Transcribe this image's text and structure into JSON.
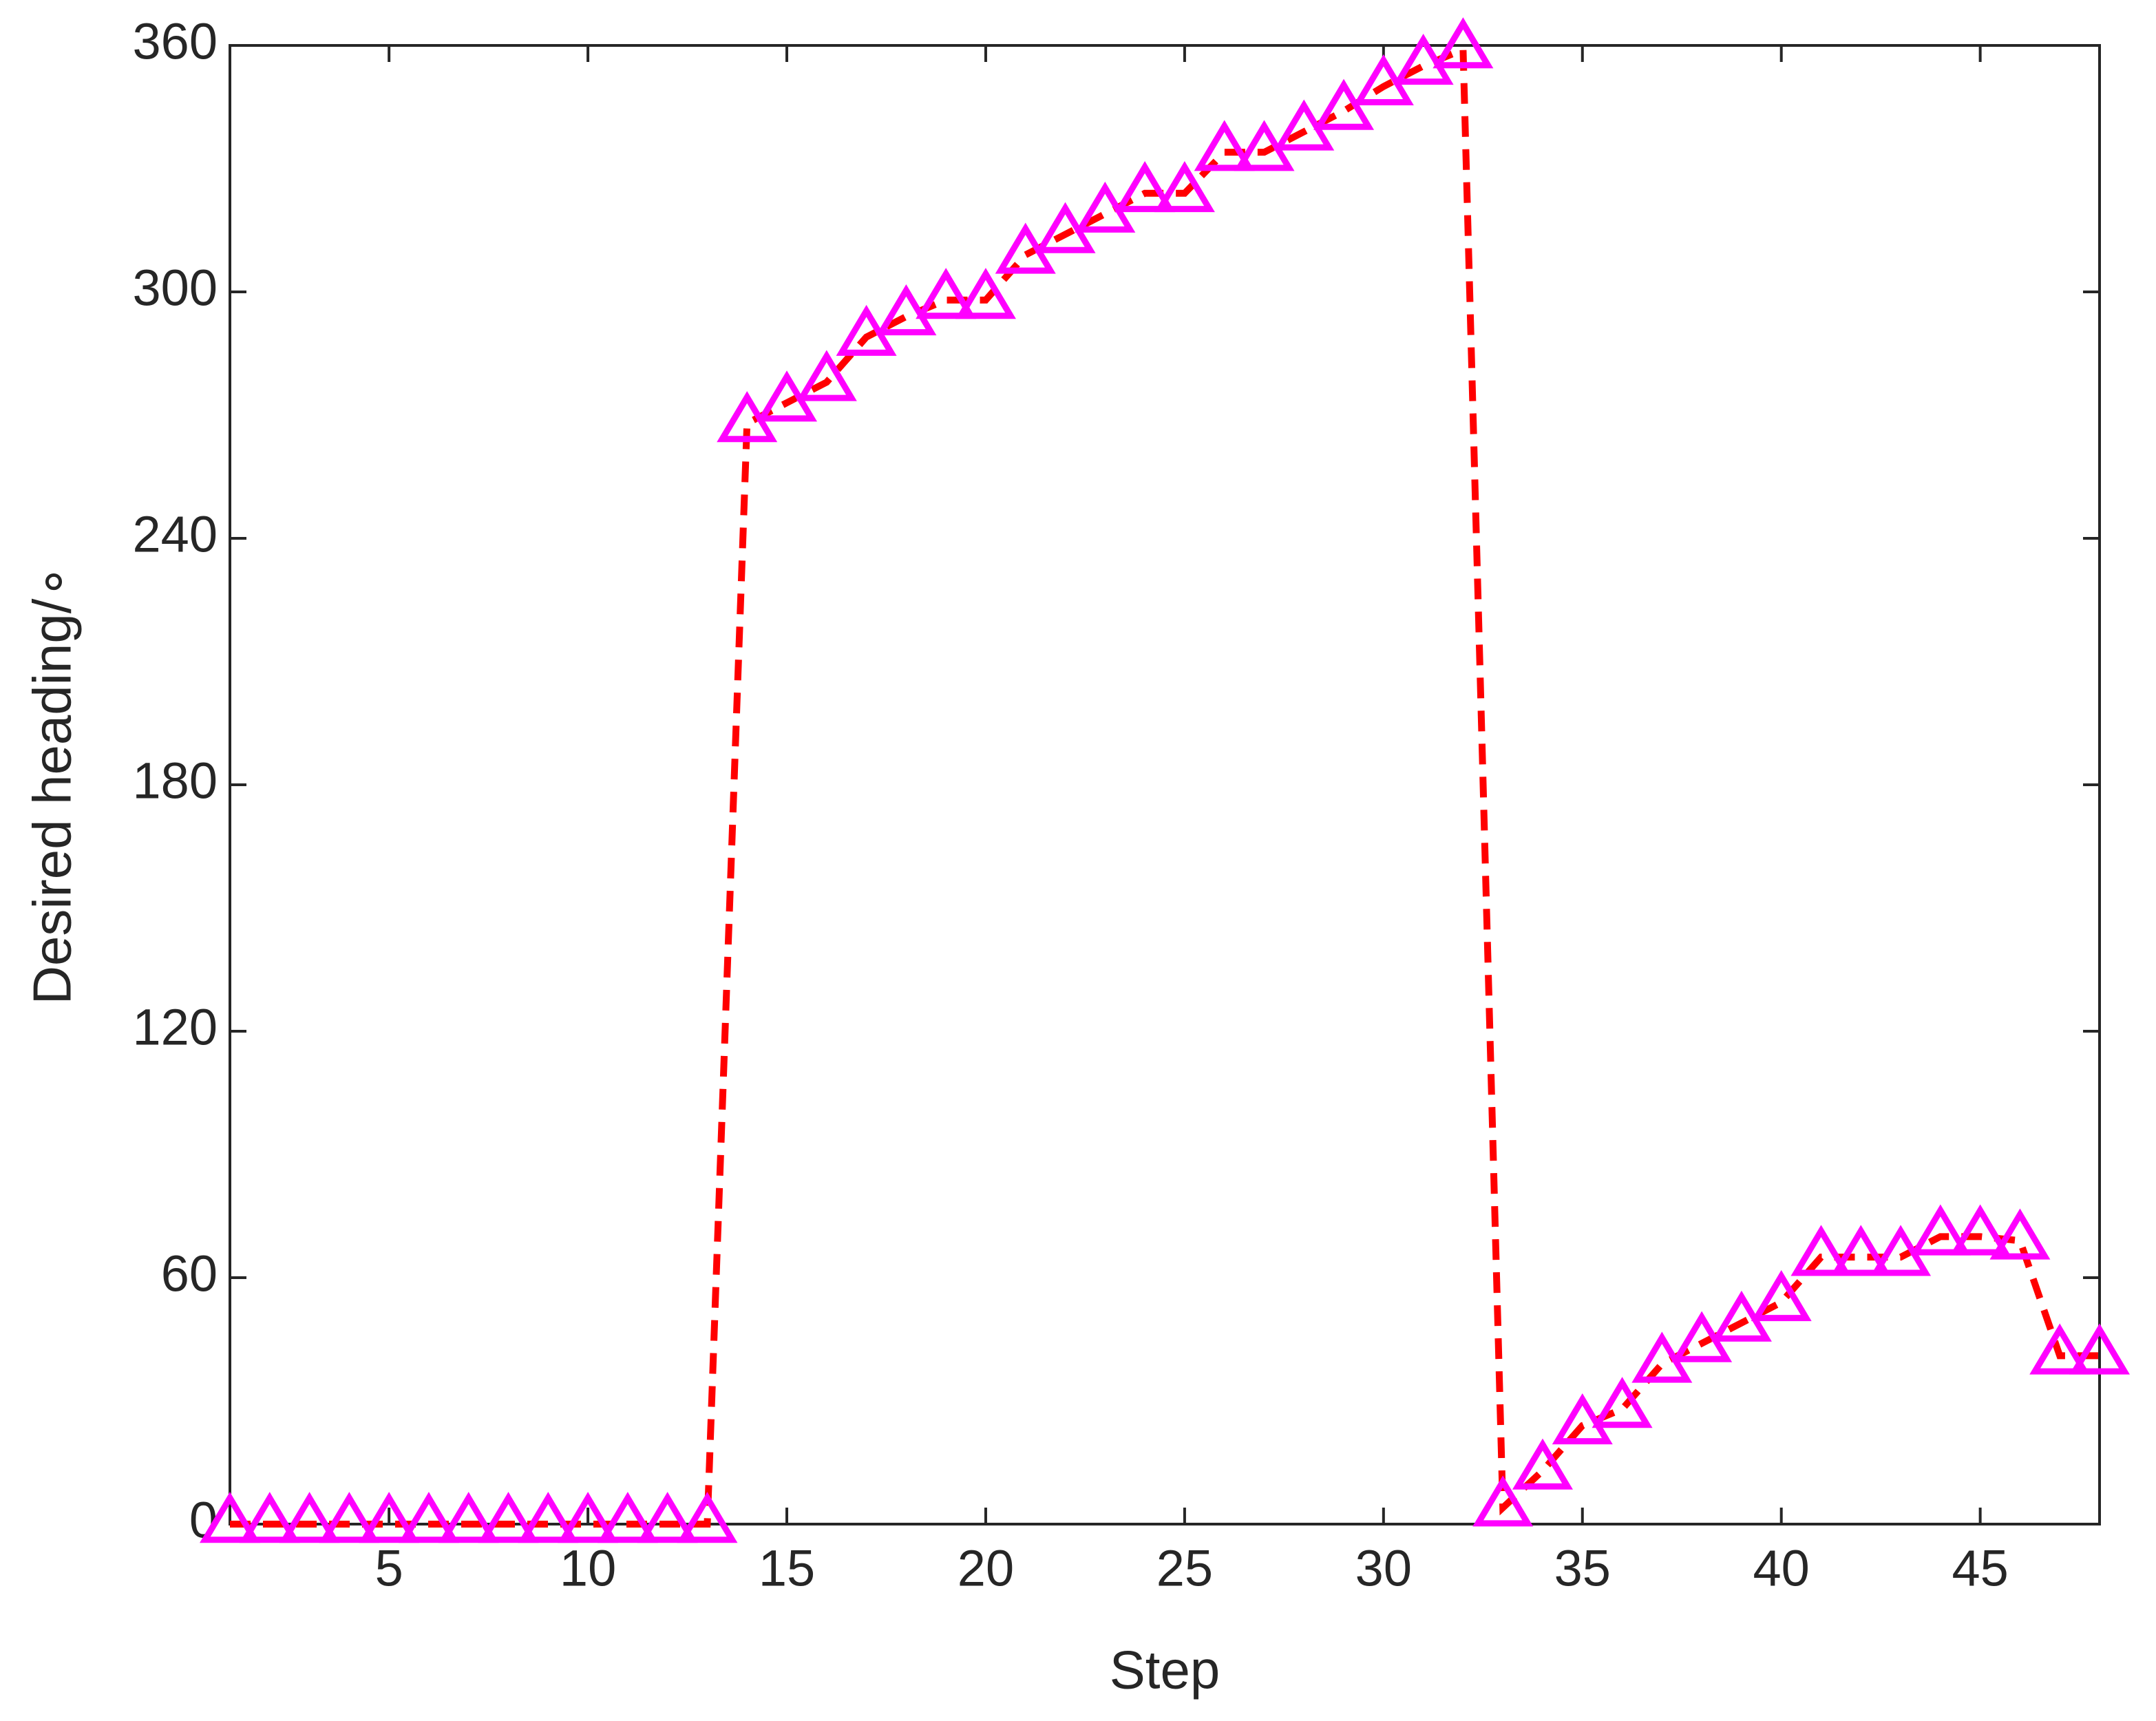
{
  "chart_data": {
    "type": "line",
    "x_label": "Step",
    "y_label": "Desired heading/∘",
    "x": [
      1,
      2,
      3,
      4,
      5,
      6,
      7,
      8,
      9,
      10,
      11,
      12,
      13,
      14,
      15,
      16,
      17,
      18,
      19,
      20,
      21,
      22,
      23,
      24,
      25,
      26,
      27,
      28,
      29,
      30,
      31,
      32,
      33,
      34,
      35,
      36,
      37,
      38,
      39,
      40,
      41,
      42,
      43,
      44,
      45,
      46,
      47,
      48
    ],
    "series": [
      {
        "color": "#ff0000",
        "marker_color": "#ff00ff",
        "marker": "triangle",
        "line_style": "dashed",
        "values": [
          0,
          0,
          0,
          0,
          0,
          0,
          0,
          0,
          0,
          0,
          0,
          0,
          0,
          268,
          273,
          278,
          289,
          294,
          298,
          298,
          309,
          314,
          319,
          324,
          324,
          334,
          334,
          339,
          344,
          350,
          355,
          359,
          4,
          13,
          24,
          28,
          39,
          44,
          49,
          54,
          65,
          65,
          65,
          70,
          70,
          69,
          41,
          41
        ]
      }
    ],
    "xlim": [
      1,
      48
    ],
    "xticks": [
      5,
      10,
      15,
      20,
      25,
      30,
      35,
      40,
      45
    ],
    "ylim": [
      0,
      360
    ],
    "yticks": [
      0,
      60,
      120,
      180,
      240,
      300,
      360
    ]
  }
}
